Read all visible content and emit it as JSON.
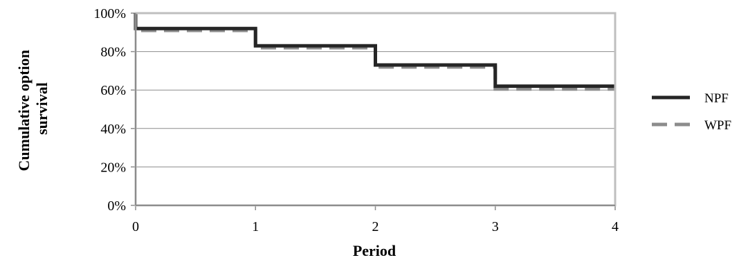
{
  "chart_data": {
    "type": "line",
    "step": true,
    "title": "",
    "xlabel": "Period",
    "ylabel_lines": [
      "Cumulative option",
      "survival"
    ],
    "x_ticks": [
      "0",
      "1",
      "2",
      "3",
      "4"
    ],
    "y_ticks": [
      "0%",
      "20%",
      "40%",
      "60%",
      "80%",
      "100%"
    ],
    "xlim": [
      0,
      4
    ],
    "ylim": [
      0,
      100
    ],
    "grid": "horizontal",
    "legend_position": "right",
    "series": [
      {
        "name": "NPF",
        "color": "#262626",
        "dash": "solid",
        "points": [
          [
            0,
            100
          ],
          [
            0,
            92
          ],
          [
            1,
            92
          ],
          [
            1,
            83
          ],
          [
            2,
            83
          ],
          [
            2,
            73
          ],
          [
            3,
            73
          ],
          [
            3,
            62
          ],
          [
            4,
            62
          ]
        ]
      },
      {
        "name": "WPF",
        "color": "#8c8c8c",
        "dash": "dashed",
        "points": [
          [
            0,
            100
          ],
          [
            0,
            91
          ],
          [
            1,
            91
          ],
          [
            1,
            82
          ],
          [
            2,
            82
          ],
          [
            2,
            72
          ],
          [
            3,
            72
          ],
          [
            3,
            60.5
          ],
          [
            4,
            60.5
          ]
        ]
      }
    ]
  }
}
